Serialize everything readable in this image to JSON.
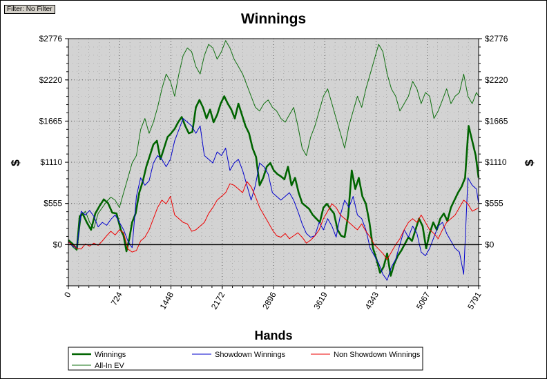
{
  "filter_button": {
    "label": "Filter: No Filter"
  },
  "chart_data": {
    "type": "line",
    "title": "Winnings",
    "xlabel": "Hands",
    "ylabel": "$",
    "ylabel_right": "$",
    "xlim": [
      0,
      5791
    ],
    "ylim": [
      -555,
      2776
    ],
    "x_ticks": [
      0,
      724,
      1448,
      2172,
      2896,
      3619,
      4343,
      5067,
      5791
    ],
    "y_ticks": [
      0,
      555,
      1110,
      1665,
      2220,
      2776
    ],
    "y_tick_labels": [
      "$0",
      "$555",
      "$1110",
      "$1665",
      "$2220",
      "$2776"
    ],
    "grid": true,
    "legend_position": "bottom",
    "series": [
      {
        "name": "Winnings",
        "color": "#006400",
        "x": [
          0,
          60,
          120,
          160,
          200,
          260,
          320,
          380,
          440,
          500,
          560,
          620,
          680,
          740,
          780,
          820,
          860,
          900,
          950,
          1000,
          1050,
          1100,
          1150,
          1200,
          1250,
          1300,
          1350,
          1400,
          1450,
          1500,
          1550,
          1600,
          1650,
          1700,
          1750,
          1800,
          1850,
          1900,
          1950,
          2000,
          2050,
          2100,
          2150,
          2200,
          2250,
          2300,
          2350,
          2400,
          2450,
          2500,
          2550,
          2600,
          2650,
          2700,
          2750,
          2800,
          2850,
          2900,
          2950,
          3000,
          3050,
          3100,
          3150,
          3200,
          3250,
          3300,
          3350,
          3400,
          3450,
          3500,
          3550,
          3600,
          3650,
          3700,
          3750,
          3800,
          3850,
          3900,
          3950,
          4000,
          4050,
          4100,
          4150,
          4200,
          4250,
          4300,
          4350,
          4400,
          4450,
          4500,
          4550,
          4600,
          4650,
          4700,
          4750,
          4800,
          4850,
          4900,
          4950,
          5000,
          5050,
          5100,
          5150,
          5200,
          5250,
          5300,
          5350,
          5400,
          5450,
          5500,
          5550,
          5600,
          5650,
          5700,
          5750,
          5791
        ],
        "values": [
          60,
          10,
          -60,
          380,
          420,
          300,
          200,
          420,
          520,
          610,
          560,
          430,
          420,
          200,
          120,
          -90,
          80,
          300,
          420,
          700,
          850,
          1050,
          1200,
          1350,
          1400,
          1150,
          1300,
          1450,
          1500,
          1560,
          1650,
          1720,
          1600,
          1500,
          1520,
          1850,
          1950,
          1850,
          1700,
          1820,
          1650,
          1750,
          1900,
          2000,
          1900,
          1820,
          1700,
          1900,
          1750,
          1600,
          1500,
          1300,
          1180,
          800,
          900,
          1050,
          1100,
          1000,
          950,
          920,
          880,
          1050,
          800,
          900,
          700,
          560,
          520,
          480,
          400,
          350,
          300,
          500,
          550,
          480,
          420,
          200,
          120,
          100,
          400,
          1000,
          750,
          900,
          650,
          550,
          300,
          -50,
          -200,
          -380,
          -300,
          -120,
          -420,
          -260,
          -150,
          -80,
          10,
          100,
          50,
          200,
          350,
          250,
          -50,
          150,
          300,
          200,
          350,
          420,
          320,
          500,
          600,
          700,
          780,
          900,
          1600,
          1400,
          1200,
          900
        ]
      },
      {
        "name": "Showdown Winnings",
        "color": "#0000cc",
        "x": [
          0,
          60,
          120,
          180,
          240,
          300,
          360,
          420,
          480,
          540,
          600,
          660,
          720,
          780,
          840,
          900,
          960,
          1020,
          1080,
          1140,
          1200,
          1260,
          1320,
          1380,
          1440,
          1500,
          1560,
          1620,
          1680,
          1740,
          1800,
          1860,
          1920,
          1980,
          2040,
          2100,
          2160,
          2220,
          2280,
          2340,
          2400,
          2460,
          2520,
          2580,
          2640,
          2700,
          2760,
          2820,
          2880,
          2940,
          3000,
          3060,
          3120,
          3180,
          3240,
          3300,
          3360,
          3420,
          3480,
          3540,
          3600,
          3660,
          3720,
          3780,
          3840,
          3900,
          3960,
          4020,
          4080,
          4140,
          4200,
          4260,
          4320,
          4380,
          4440,
          4500,
          4560,
          4620,
          4680,
          4740,
          4800,
          4860,
          4920,
          4980,
          5040,
          5100,
          5160,
          5220,
          5280,
          5340,
          5400,
          5460,
          5520,
          5580,
          5640,
          5700,
          5760,
          5791
        ],
        "values": [
          40,
          -20,
          -50,
          450,
          400,
          460,
          380,
          240,
          300,
          260,
          340,
          400,
          300,
          200,
          50,
          -40,
          650,
          900,
          800,
          860,
          1100,
          1200,
          1150,
          1050,
          1150,
          1400,
          1550,
          1700,
          1650,
          1600,
          1500,
          1600,
          1200,
          1150,
          1100,
          1250,
          1200,
          1300,
          1000,
          1100,
          1150,
          1000,
          800,
          600,
          800,
          1100,
          1050,
          950,
          700,
          650,
          600,
          650,
          700,
          600,
          450,
          280,
          150,
          100,
          120,
          300,
          200,
          350,
          250,
          100,
          400,
          600,
          500,
          650,
          400,
          350,
          200,
          -50,
          -150,
          -250,
          -400,
          -480,
          -300,
          -200,
          0,
          200,
          100,
          250,
          150,
          -100,
          -150,
          -50,
          100,
          250,
          300,
          150,
          50,
          -50,
          -100,
          -400,
          900,
          800,
          750,
          550
        ]
      },
      {
        "name": "Non Showdown Winnings",
        "color": "#ee0000",
        "x": [
          0,
          60,
          120,
          180,
          240,
          300,
          360,
          420,
          480,
          540,
          600,
          660,
          720,
          780,
          840,
          900,
          960,
          1020,
          1080,
          1140,
          1200,
          1260,
          1320,
          1380,
          1440,
          1500,
          1560,
          1620,
          1680,
          1740,
          1800,
          1860,
          1920,
          1980,
          2040,
          2100,
          2160,
          2220,
          2280,
          2340,
          2400,
          2460,
          2520,
          2580,
          2640,
          2700,
          2760,
          2820,
          2880,
          2940,
          3000,
          3060,
          3120,
          3180,
          3240,
          3300,
          3360,
          3420,
          3480,
          3540,
          3600,
          3660,
          3720,
          3780,
          3840,
          3900,
          3960,
          4020,
          4080,
          4140,
          4200,
          4260,
          4320,
          4380,
          4440,
          4500,
          4560,
          4620,
          4680,
          4740,
          4800,
          4860,
          4920,
          4980,
          5040,
          5100,
          5160,
          5220,
          5280,
          5340,
          5400,
          5460,
          5520,
          5580,
          5640,
          5700,
          5760,
          5791
        ],
        "values": [
          30,
          0,
          -50,
          -60,
          10,
          -20,
          20,
          -10,
          50,
          120,
          180,
          130,
          200,
          160,
          -60,
          -100,
          -80,
          50,
          100,
          200,
          350,
          500,
          600,
          550,
          650,
          400,
          350,
          300,
          280,
          180,
          200,
          250,
          300,
          420,
          500,
          600,
          650,
          700,
          820,
          800,
          750,
          700,
          850,
          780,
          650,
          500,
          400,
          300,
          200,
          120,
          100,
          150,
          80,
          120,
          160,
          100,
          20,
          60,
          120,
          200,
          350,
          450,
          550,
          500,
          400,
          350,
          300,
          250,
          200,
          280,
          180,
          100,
          0,
          -60,
          -120,
          -200,
          -100,
          0,
          80,
          200,
          300,
          350,
          300,
          400,
          300,
          200,
          150,
          80,
          200,
          300,
          350,
          400,
          500,
          600,
          550,
          450,
          480,
          500
        ]
      },
      {
        "name": "All-In EV",
        "color": "#107010",
        "x": [
          0,
          60,
          120,
          180,
          240,
          300,
          360,
          420,
          480,
          540,
          600,
          660,
          720,
          780,
          840,
          900,
          960,
          1020,
          1080,
          1140,
          1200,
          1260,
          1320,
          1380,
          1440,
          1500,
          1560,
          1620,
          1680,
          1740,
          1800,
          1860,
          1920,
          1980,
          2040,
          2100,
          2160,
          2220,
          2280,
          2340,
          2400,
          2460,
          2520,
          2580,
          2640,
          2700,
          2760,
          2820,
          2880,
          2940,
          3000,
          3060,
          3120,
          3180,
          3240,
          3300,
          3360,
          3420,
          3480,
          3540,
          3600,
          3660,
          3720,
          3780,
          3840,
          3900,
          3960,
          4020,
          4080,
          4140,
          4200,
          4260,
          4320,
          4380,
          4440,
          4500,
          4560,
          4620,
          4680,
          4740,
          4800,
          4860,
          4920,
          4980,
          5040,
          5100,
          5160,
          5220,
          5280,
          5340,
          5400,
          5460,
          5520,
          5580,
          5640,
          5700,
          5760,
          5791
        ],
        "values": [
          60,
          -30,
          -80,
          380,
          450,
          300,
          220,
          420,
          500,
          580,
          640,
          600,
          500,
          700,
          900,
          1100,
          1200,
          1550,
          1700,
          1500,
          1650,
          1850,
          2100,
          2300,
          2200,
          2000,
          2300,
          2550,
          2650,
          2600,
          2400,
          2300,
          2550,
          2700,
          2650,
          2500,
          2600,
          2750,
          2650,
          2500,
          2400,
          2300,
          2150,
          2000,
          1850,
          1800,
          1900,
          1950,
          1850,
          1800,
          1700,
          1650,
          1750,
          1850,
          1600,
          1300,
          1200,
          1450,
          1600,
          1800,
          2000,
          2100,
          1900,
          1700,
          1500,
          1300,
          1600,
          1800,
          2000,
          1850,
          2100,
          2300,
          2500,
          2700,
          2600,
          2300,
          2100,
          2000,
          1800,
          1900,
          2000,
          2200,
          2100,
          1900,
          2050,
          2000,
          1700,
          1800,
          1950,
          2100,
          1900,
          2000,
          2050,
          2300,
          2000,
          1900,
          2050,
          2000
        ]
      }
    ]
  }
}
